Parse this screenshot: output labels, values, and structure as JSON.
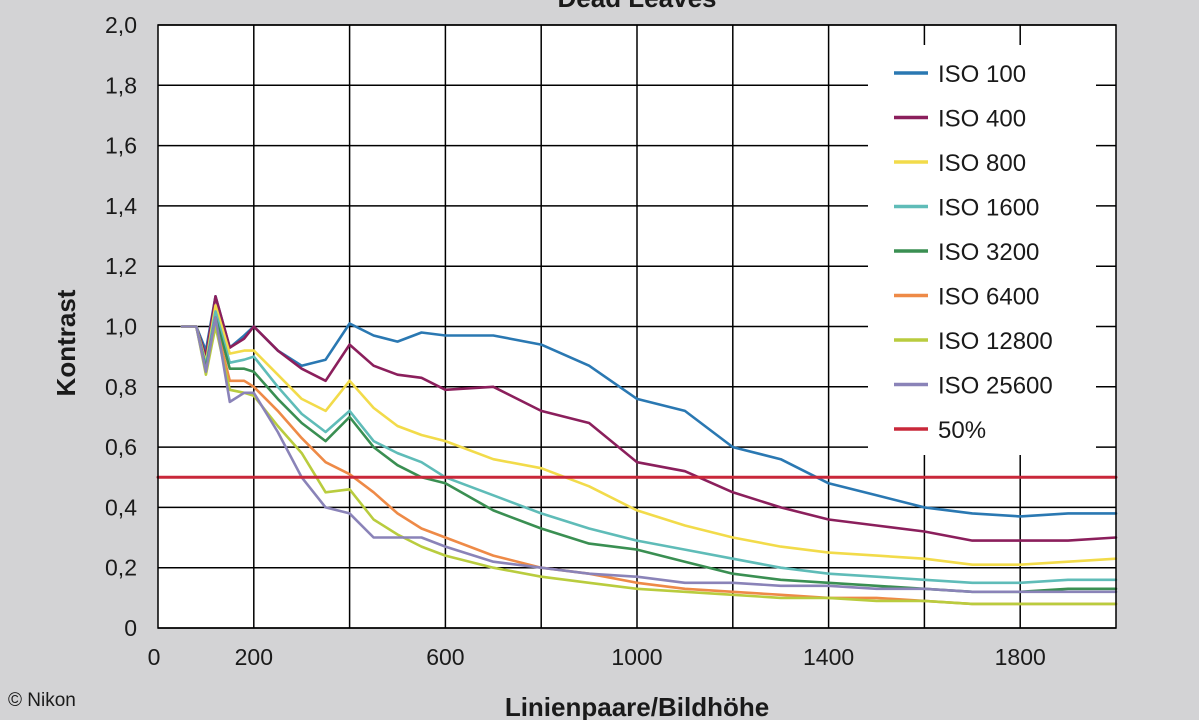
{
  "credit": "© Nikon",
  "chart_data": {
    "type": "line",
    "title": "Dead Leaves",
    "xlabel": "Linienpaare/Bildhöhe",
    "ylabel": "Kontrast",
    "xlim": [
      0,
      2000
    ],
    "ylim": [
      0,
      2.0
    ],
    "x_ticks": [
      0,
      200,
      600,
      1000,
      1400,
      1800
    ],
    "x_tick_labels": [
      "0",
      "200",
      "600",
      "1000",
      "1400",
      "1800"
    ],
    "x_grid": [
      200,
      400,
      600,
      800,
      1000,
      1200,
      1400,
      1600,
      1800
    ],
    "y_ticks": [
      0,
      0.2,
      0.4,
      0.6,
      0.8,
      1.0,
      1.2,
      1.4,
      1.6,
      1.8,
      2.0
    ],
    "y_tick_labels": [
      "0",
      "0,2",
      "0,4",
      "0,6",
      "0,8",
      "1,0",
      "1,2",
      "1,4",
      "1,6",
      "1,8",
      "2,0"
    ],
    "grid": true,
    "legend_position": "top-right",
    "x": [
      50,
      80,
      100,
      120,
      150,
      180,
      200,
      250,
      300,
      350,
      400,
      450,
      500,
      550,
      600,
      700,
      800,
      900,
      1000,
      1100,
      1200,
      1300,
      1400,
      1500,
      1600,
      1700,
      1800,
      1900,
      2000
    ],
    "series": [
      {
        "name": "ISO 100",
        "color": "#2a78b2",
        "values": [
          1.0,
          1.0,
          0.92,
          1.1,
          0.93,
          0.97,
          1.0,
          0.92,
          0.87,
          0.89,
          1.01,
          0.97,
          0.95,
          0.98,
          0.97,
          0.97,
          0.94,
          0.87,
          0.76,
          0.72,
          0.6,
          0.56,
          0.48,
          0.44,
          0.4,
          0.38,
          0.37,
          0.38,
          0.38
        ]
      },
      {
        "name": "ISO 400",
        "color": "#8b1f5c",
        "values": [
          1.0,
          1.0,
          0.9,
          1.1,
          0.93,
          0.96,
          1.0,
          0.92,
          0.86,
          0.82,
          0.94,
          0.87,
          0.84,
          0.83,
          0.79,
          0.8,
          0.72,
          0.68,
          0.55,
          0.52,
          0.45,
          0.4,
          0.36,
          0.34,
          0.32,
          0.29,
          0.29,
          0.29,
          0.3
        ]
      },
      {
        "name": "ISO 800",
        "color": "#f2db4a",
        "values": [
          1.0,
          1.0,
          0.88,
          1.07,
          0.91,
          0.92,
          0.92,
          0.84,
          0.76,
          0.72,
          0.82,
          0.73,
          0.67,
          0.64,
          0.62,
          0.56,
          0.53,
          0.47,
          0.39,
          0.34,
          0.3,
          0.27,
          0.25,
          0.24,
          0.23,
          0.21,
          0.21,
          0.22,
          0.23
        ]
      },
      {
        "name": "ISO 1600",
        "color": "#5fbcb8",
        "values": [
          1.0,
          1.0,
          0.87,
          1.05,
          0.88,
          0.89,
          0.9,
          0.8,
          0.71,
          0.65,
          0.72,
          0.62,
          0.58,
          0.55,
          0.5,
          0.44,
          0.38,
          0.33,
          0.29,
          0.26,
          0.23,
          0.2,
          0.18,
          0.17,
          0.16,
          0.15,
          0.15,
          0.16,
          0.16
        ]
      },
      {
        "name": "ISO 3200",
        "color": "#3a8f52",
        "values": [
          1.0,
          1.0,
          0.86,
          1.03,
          0.86,
          0.86,
          0.85,
          0.76,
          0.68,
          0.62,
          0.7,
          0.6,
          0.54,
          0.5,
          0.48,
          0.39,
          0.33,
          0.28,
          0.26,
          0.22,
          0.18,
          0.16,
          0.15,
          0.14,
          0.13,
          0.12,
          0.12,
          0.13,
          0.13
        ]
      },
      {
        "name": "ISO 6400",
        "color": "#ee8a47",
        "values": [
          1.0,
          1.0,
          0.85,
          1.01,
          0.82,
          0.82,
          0.8,
          0.72,
          0.63,
          0.55,
          0.51,
          0.45,
          0.38,
          0.33,
          0.3,
          0.24,
          0.2,
          0.18,
          0.15,
          0.13,
          0.12,
          0.11,
          0.1,
          0.1,
          0.09,
          0.08,
          0.08,
          0.08,
          0.08
        ]
      },
      {
        "name": "ISO 12800",
        "color": "#b9cc3e",
        "values": [
          1.0,
          1.0,
          0.84,
          1.0,
          0.79,
          0.78,
          0.77,
          0.67,
          0.58,
          0.45,
          0.46,
          0.36,
          0.31,
          0.27,
          0.24,
          0.2,
          0.17,
          0.15,
          0.13,
          0.12,
          0.11,
          0.1,
          0.1,
          0.09,
          0.09,
          0.08,
          0.08,
          0.08,
          0.08
        ]
      },
      {
        "name": "ISO 25600",
        "color": "#8a83b8",
        "values": [
          1.0,
          1.0,
          0.85,
          1.03,
          0.75,
          0.78,
          0.78,
          0.65,
          0.5,
          0.4,
          0.38,
          0.3,
          0.3,
          0.3,
          0.27,
          0.22,
          0.2,
          0.18,
          0.17,
          0.15,
          0.15,
          0.14,
          0.14,
          0.13,
          0.13,
          0.12,
          0.12,
          0.12,
          0.12
        ]
      },
      {
        "name": "50%",
        "color": "#c9283a",
        "values": [
          0.5,
          0.5,
          0.5,
          0.5,
          0.5,
          0.5,
          0.5,
          0.5,
          0.5,
          0.5,
          0.5,
          0.5,
          0.5,
          0.5,
          0.5,
          0.5,
          0.5,
          0.5,
          0.5,
          0.5,
          0.5,
          0.5,
          0.5,
          0.5,
          0.5,
          0.5,
          0.5,
          0.5,
          0.5
        ],
        "full_width": true
      }
    ]
  }
}
